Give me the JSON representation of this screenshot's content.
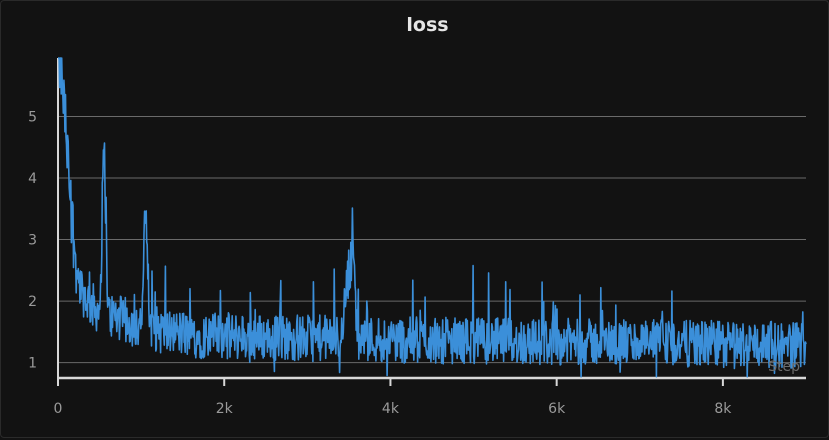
{
  "chart_data": {
    "type": "line",
    "title": "loss",
    "xlabel": "Step",
    "ylabel": "",
    "xlim": [
      0,
      9000
    ],
    "ylim": [
      0.75,
      5.95
    ],
    "x_ticks": [
      0,
      2000,
      4000,
      6000,
      8000
    ],
    "x_tick_labels": [
      "0",
      "2k",
      "4k",
      "6k",
      "8k"
    ],
    "y_ticks": [
      1,
      2,
      3,
      4,
      5
    ],
    "y_tick_labels": [
      "1",
      "2",
      "3",
      "4",
      "5"
    ],
    "grid": "horizontal",
    "line_color": "#3b8fd9",
    "series": [
      {
        "x": [
          0,
          50,
          100,
          150,
          200,
          250,
          300,
          400,
          500,
          560,
          600,
          700,
          800,
          900,
          1000,
          1060,
          1100,
          1200,
          1300,
          1450,
          1600,
          1800,
          2000,
          2200,
          2500,
          2800,
          3000,
          3200,
          3400,
          3550,
          3600,
          3700,
          3900,
          4100,
          4300,
          4500,
          4700,
          4900,
          5100,
          5300,
          5500,
          5700,
          5900,
          6100,
          6300,
          6500,
          6700,
          6900,
          7100,
          7300,
          7500,
          7700,
          7900,
          8100,
          8300,
          8500,
          8700,
          8900,
          9000
        ],
        "values": [
          5.95,
          5.5,
          4.6,
          3.6,
          2.8,
          2.3,
          2.1,
          1.9,
          1.8,
          4.6,
          1.75,
          1.7,
          1.65,
          1.6,
          1.55,
          3.5,
          1.55,
          1.5,
          1.45,
          1.45,
          1.4,
          1.4,
          1.4,
          1.38,
          1.38,
          1.37,
          1.36,
          1.36,
          1.35,
          3.05,
          1.35,
          1.35,
          1.34,
          1.34,
          1.33,
          1.33,
          1.32,
          1.32,
          1.32,
          1.31,
          1.31,
          1.3,
          1.3,
          1.3,
          1.3,
          1.29,
          1.29,
          1.28,
          1.28,
          1.28,
          1.27,
          1.27,
          1.27,
          1.26,
          1.26,
          1.26,
          1.25,
          1.25,
          1.3
        ]
      }
    ]
  }
}
